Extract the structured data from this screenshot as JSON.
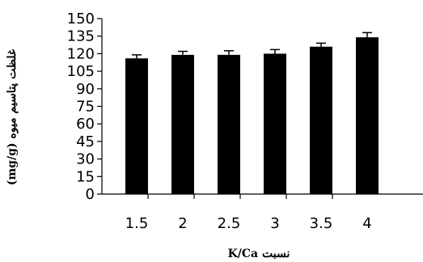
{
  "chart_data": {
    "type": "bar",
    "title": "",
    "xlabel": "نسبت K/Ca",
    "ylabel": "غلظت پتاسیم میوه (mg/g)",
    "categories": [
      "1.5",
      "2",
      "2.5",
      "3",
      "3.5",
      "4"
    ],
    "values": [
      116,
      119,
      119,
      120,
      126,
      134
    ],
    "errors": [
      3,
      3,
      3.5,
      3.5,
      3,
      4
    ],
    "ylim": [
      0,
      150
    ],
    "yticks": [
      "0",
      "15",
      "30",
      "45",
      "60",
      "75",
      "90",
      "105",
      "120",
      "135",
      "150"
    ],
    "grid": false,
    "legend": "none",
    "bar_color": "#000000"
  }
}
